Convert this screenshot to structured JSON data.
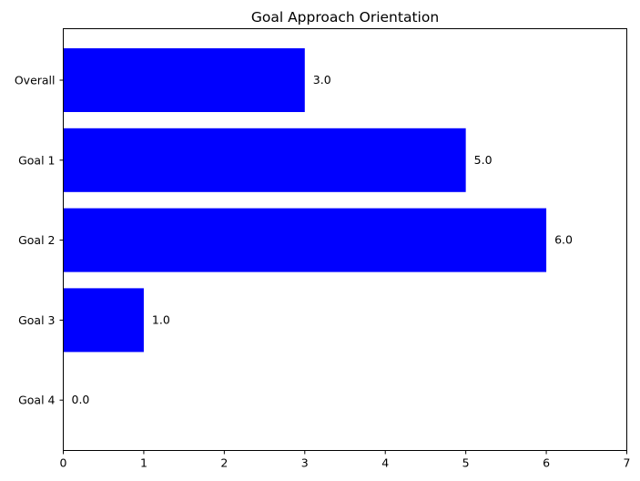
{
  "chart_data": {
    "type": "bar",
    "orientation": "horizontal",
    "title": "Goal Approach Orientation",
    "categories": [
      "Overall",
      "Goal 1",
      "Goal 2",
      "Goal 3",
      "Goal 4"
    ],
    "values": [
      3.0,
      5.0,
      6.0,
      1.0,
      0.0
    ],
    "value_labels": [
      "3.0",
      "5.0",
      "6.0",
      "1.0",
      "0.0"
    ],
    "xlim": [
      0,
      7
    ],
    "xticks": [
      "0",
      "1",
      "2",
      "3",
      "4",
      "5",
      "6",
      "7"
    ],
    "xlabel": "",
    "ylabel": "",
    "bar_color": "#0000ff",
    "grid": false,
    "legend": "none"
  }
}
